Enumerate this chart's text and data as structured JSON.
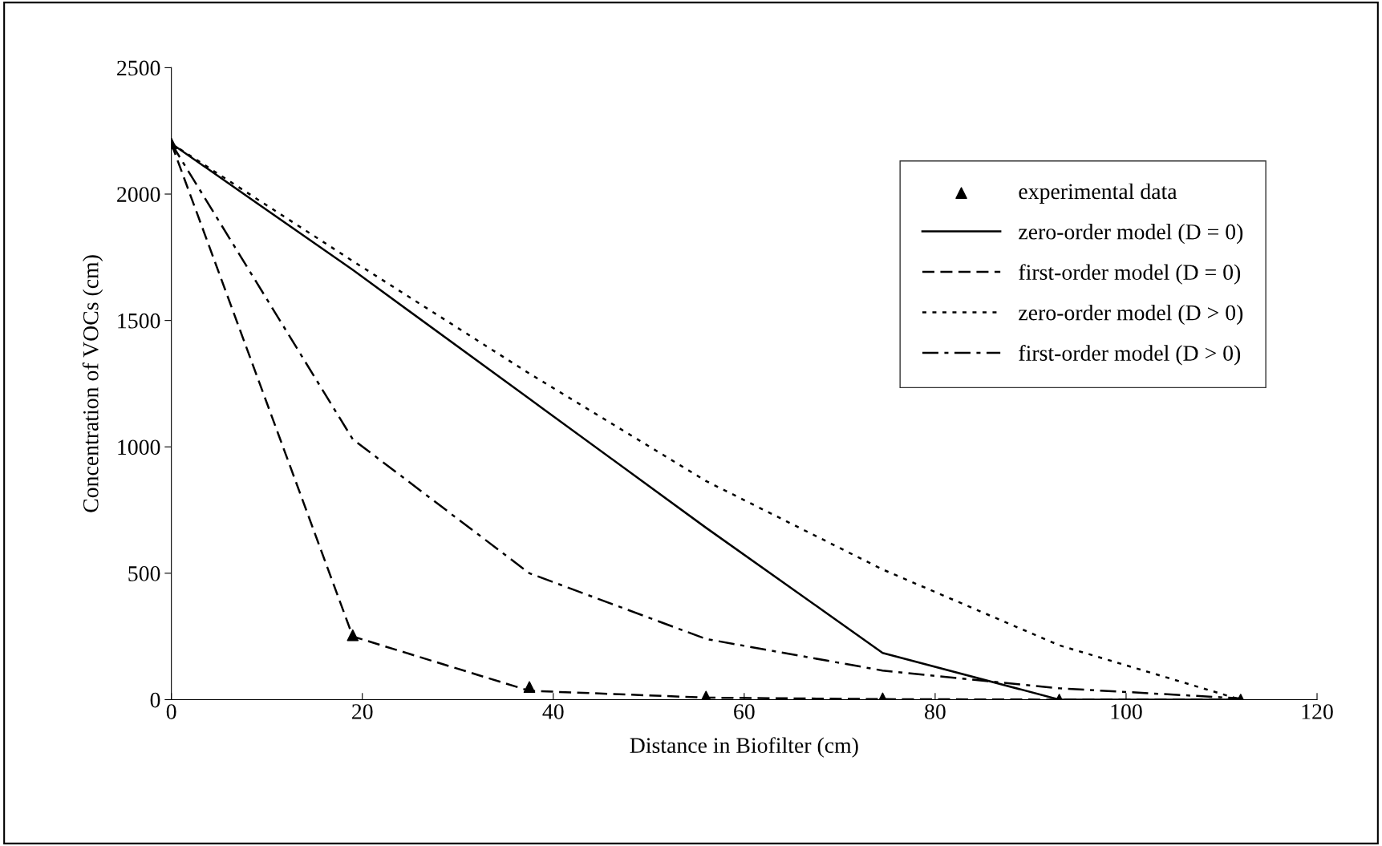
{
  "chart_data": {
    "type": "line",
    "xlabel": "Distance in Biofilter (cm)",
    "ylabel": "Concentration of VOCs (cm)",
    "x": [
      0,
      19,
      37.5,
      56,
      74.5,
      93,
      112
    ],
    "series": [
      {
        "name": "experimental data",
        "type": "scatter",
        "marker": "triangle",
        "color": "#000000",
        "values": [
          2200,
          255,
          50,
          12,
          5,
          0,
          0
        ]
      },
      {
        "name": "zero-order model (D = 0)",
        "line_style": "solid",
        "color": "#000000",
        "values": [
          2200,
          1700,
          1190,
          680,
          185,
          0,
          0
        ]
      },
      {
        "name": "first-order model (D = 0)",
        "line_style": "dashed",
        "color": "#000000",
        "values": [
          2200,
          250,
          35,
          8,
          2,
          0,
          0
        ]
      },
      {
        "name": "zero-order model (D > 0)",
        "line_style": "dotted",
        "color": "#000000",
        "values": [
          2200,
          1735,
          1290,
          865,
          515,
          215,
          0
        ]
      },
      {
        "name": "first-order model (D > 0)",
        "line_style": "dashdot",
        "color": "#000000",
        "values": [
          2200,
          1030,
          500,
          240,
          115,
          45,
          5
        ]
      }
    ],
    "xlim": [
      0,
      120
    ],
    "xticks": [
      0,
      20,
      40,
      60,
      80,
      100,
      120
    ],
    "ylim": [
      0,
      2500
    ],
    "yticks": [
      0,
      500,
      1000,
      1500,
      2000,
      2500
    ],
    "grid": false,
    "legend": "top right"
  }
}
